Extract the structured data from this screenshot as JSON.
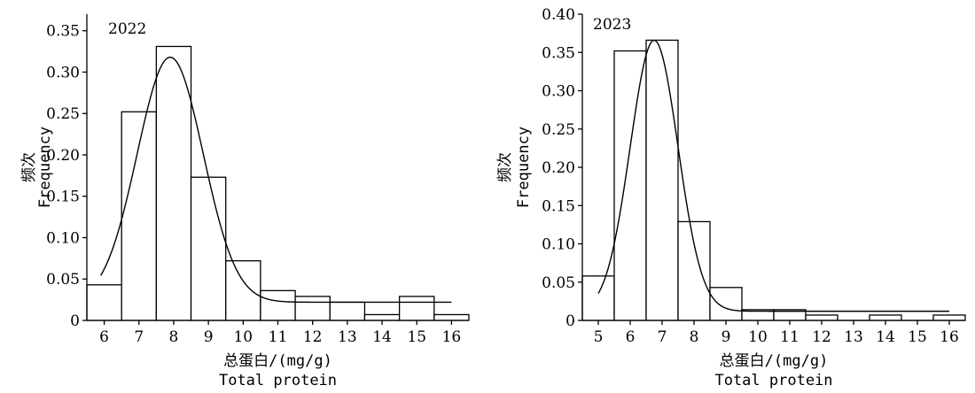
{
  "chart_data": [
    {
      "type": "bar",
      "annotation": "2022",
      "xlabel": "总蛋白/(mg/g)",
      "xlabel_en": "Total protein",
      "ylabel": "频次",
      "ylabel_en": "Frequency",
      "xlim": [
        5.5,
        16.5
      ],
      "ylim": [
        0,
        0.37
      ],
      "x_ticks": [
        6,
        7,
        8,
        9,
        10,
        11,
        12,
        13,
        14,
        15,
        16
      ],
      "y_ticks": [
        0,
        0.05,
        0.1,
        0.15,
        0.2,
        0.25,
        0.3,
        0.35
      ],
      "y_tick_labels": [
        "0",
        "0.05",
        "0.10",
        "0.15",
        "0.20",
        "0.25",
        "0.30",
        "0.35"
      ],
      "bins": [
        {
          "start": 5.5,
          "end": 6.5,
          "value": 0.043
        },
        {
          "start": 6.5,
          "end": 7.5,
          "value": 0.252
        },
        {
          "start": 7.5,
          "end": 8.5,
          "value": 0.331
        },
        {
          "start": 8.5,
          "end": 9.5,
          "value": 0.173
        },
        {
          "start": 9.5,
          "end": 10.5,
          "value": 0.072
        },
        {
          "start": 10.5,
          "end": 11.5,
          "value": 0.036
        },
        {
          "start": 11.5,
          "end": 12.5,
          "value": 0.029
        },
        {
          "start": 12.5,
          "end": 13.5,
          "value": 0.022
        },
        {
          "start": 13.5,
          "end": 14.5,
          "value": 0.007
        },
        {
          "start": 14.5,
          "end": 15.5,
          "value": 0.029
        },
        {
          "start": 15.5,
          "end": 16.5,
          "value": 0.007
        }
      ],
      "curve": {
        "mean": 7.9,
        "sd": 0.95,
        "peak": 0.318,
        "baseline": 0.022,
        "x_range": [
          5.9,
          16.0
        ]
      }
    },
    {
      "type": "bar",
      "annotation": "2023",
      "xlabel": "总蛋白/(mg/g)",
      "xlabel_en": "Total protein",
      "ylabel": "频次",
      "ylabel_en": "Frequency",
      "xlim": [
        4.5,
        16.5
      ],
      "ylim": [
        0,
        0.4
      ],
      "x_ticks": [
        5,
        6,
        7,
        8,
        9,
        10,
        11,
        12,
        13,
        14,
        15,
        16
      ],
      "y_ticks": [
        0,
        0.05,
        0.1,
        0.15,
        0.2,
        0.25,
        0.3,
        0.35,
        0.4
      ],
      "y_tick_labels": [
        "0",
        "0.05",
        "0.10",
        "0.15",
        "0.20",
        "0.25",
        "0.30",
        "0.35",
        "0.40"
      ],
      "bins": [
        {
          "start": 4.5,
          "end": 5.5,
          "value": 0.058
        },
        {
          "start": 5.5,
          "end": 6.5,
          "value": 0.352
        },
        {
          "start": 6.5,
          "end": 7.5,
          "value": 0.366
        },
        {
          "start": 7.5,
          "end": 8.5,
          "value": 0.129
        },
        {
          "start": 8.5,
          "end": 9.5,
          "value": 0.043
        },
        {
          "start": 9.5,
          "end": 10.5,
          "value": 0.014
        },
        {
          "start": 10.5,
          "end": 11.5,
          "value": 0.014
        },
        {
          "start": 11.5,
          "end": 12.5,
          "value": 0.007
        },
        {
          "start": 12.5,
          "end": 13.5,
          "value": 0.0
        },
        {
          "start": 13.5,
          "end": 14.5,
          "value": 0.007
        },
        {
          "start": 14.5,
          "end": 15.5,
          "value": 0.0
        },
        {
          "start": 15.5,
          "end": 16.5,
          "value": 0.007
        }
      ],
      "curve": {
        "mean": 6.75,
        "sd": 0.75,
        "peak": 0.366,
        "baseline": 0.012,
        "x_range": [
          5.0,
          16.0
        ]
      }
    }
  ]
}
